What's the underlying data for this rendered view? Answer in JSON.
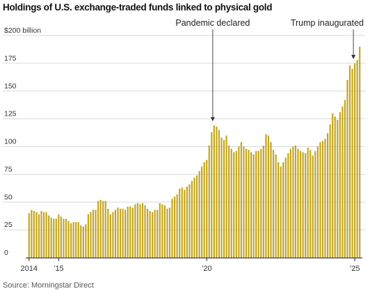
{
  "title": "Holdings of U.S. exchange-traded funds linked to physical gold",
  "source": "Source: Morningstar Direct",
  "colors": {
    "bar": "#c4a61e",
    "grid": "#d9d9d9",
    "axis": "#222222",
    "text": "#333333"
  },
  "chart_data": {
    "type": "bar",
    "title": "Holdings of U.S. exchange-traded funds linked to physical gold",
    "xlabel": "",
    "ylabel": "",
    "y_unit_label": "$200 billion",
    "ylim": [
      0,
      200
    ],
    "yticks": [
      0,
      25,
      50,
      75,
      100,
      125,
      150,
      175,
      200
    ],
    "ytick_labels": [
      "0",
      "25",
      "50",
      "75",
      "100",
      "125",
      "150",
      "175",
      "$200 billion"
    ],
    "grid": true,
    "xticks": [
      {
        "label": "2014",
        "index": 0
      },
      {
        "label": "’15",
        "index": 12
      },
      {
        "label": "’20",
        "index": 72
      },
      {
        "label": "’25",
        "index": 132
      }
    ],
    "annotations": [
      {
        "label": "Pandemic declared",
        "index": 75
      },
      {
        "label": "Trump inaugurated",
        "index": 132
      }
    ],
    "start": "2014-01",
    "frequency": "monthly",
    "values": [
      40,
      43,
      42,
      41,
      39,
      42,
      41,
      41,
      38,
      36,
      35,
      35,
      39,
      37,
      35,
      35,
      33,
      31,
      32,
      32,
      32,
      29,
      28,
      30,
      39,
      41,
      43,
      43,
      51,
      52,
      51,
      51,
      44,
      39,
      41,
      43,
      45,
      44,
      44,
      43,
      46,
      46,
      45,
      48,
      49,
      48,
      49,
      47,
      44,
      42,
      41,
      43,
      43,
      49,
      48,
      47,
      44,
      45,
      53,
      55,
      57,
      62,
      63,
      61,
      64,
      66,
      69,
      72,
      74,
      78,
      82,
      86,
      88,
      101,
      113,
      119,
      118,
      115,
      108,
      106,
      110,
      101,
      98,
      95,
      96,
      100,
      104,
      100,
      98,
      97,
      95,
      93,
      96,
      96,
      98,
      101,
      111,
      110,
      104,
      97,
      93,
      86,
      82,
      86,
      90,
      94,
      98,
      100,
      101,
      98,
      96,
      95,
      94,
      99,
      97,
      92,
      96,
      100,
      104,
      105,
      107,
      112,
      120,
      130,
      127,
      124,
      131,
      136,
      142,
      160,
      173,
      170,
      175,
      178,
      190
    ]
  }
}
